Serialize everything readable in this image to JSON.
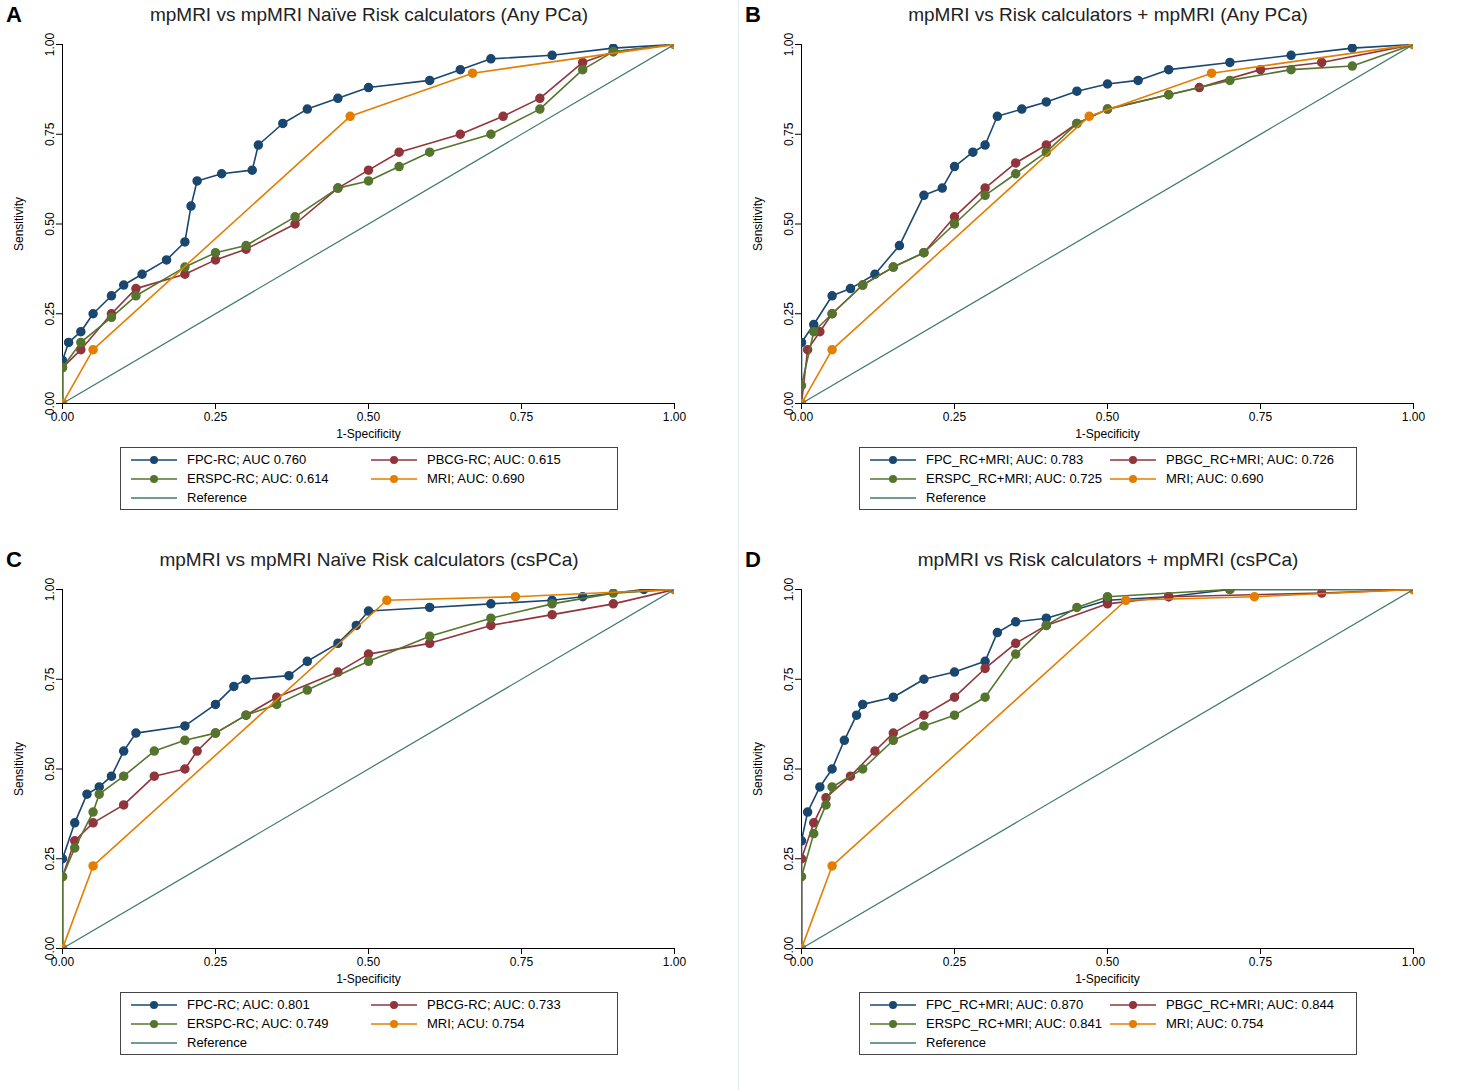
{
  "chart_data": [
    {
      "type": "line",
      "panel": "A",
      "title": "mpMRI vs mpMRI Naïve Risk calculators (Any PCa)",
      "x_label": "1-Specificity",
      "y_label": "Sensitivity",
      "xlim": [
        0,
        1
      ],
      "ylim": [
        0,
        1
      ],
      "xticks": [
        {
          "value": 0,
          "label": "0.00"
        },
        {
          "value": 0.25,
          "label": "0.25"
        },
        {
          "value": 0.5,
          "label": "0.50"
        },
        {
          "value": 0.75,
          "label": "0.75"
        },
        {
          "value": 1,
          "label": "1.00"
        }
      ],
      "yticks": [
        {
          "value": 0,
          "label": "0.00"
        },
        {
          "value": 0.25,
          "label": "0.25"
        },
        {
          "value": 0.5,
          "label": "0.50"
        },
        {
          "value": 0.75,
          "label": "0.75"
        },
        {
          "value": 1,
          "label": "1.00"
        }
      ],
      "series": [
        {
          "name": "FPC-RC; AUC 0.760",
          "color": "#1a476f",
          "marker": "circle",
          "x": [
            0,
            0,
            0.01,
            0.03,
            0.05,
            0.08,
            0.1,
            0.13,
            0.17,
            0.2,
            0.21,
            0.22,
            0.26,
            0.31,
            0.32,
            0.36,
            0.4,
            0.45,
            0.5,
            0.6,
            0.65,
            0.7,
            0.8,
            0.9,
            1
          ],
          "values": [
            0,
            0.12,
            0.17,
            0.2,
            0.25,
            0.3,
            0.33,
            0.36,
            0.4,
            0.45,
            0.55,
            0.62,
            0.64,
            0.65,
            0.72,
            0.78,
            0.82,
            0.85,
            0.88,
            0.9,
            0.93,
            0.96,
            0.97,
            0.99,
            1
          ]
        },
        {
          "name": "PBCG-RC; AUC: 0.615",
          "color": "#90353b",
          "marker": "circle",
          "x": [
            0,
            0,
            0.03,
            0.08,
            0.12,
            0.2,
            0.25,
            0.3,
            0.38,
            0.45,
            0.5,
            0.55,
            0.65,
            0.72,
            0.78,
            0.85,
            0.9,
            1
          ],
          "values": [
            0,
            0.1,
            0.15,
            0.25,
            0.32,
            0.36,
            0.4,
            0.43,
            0.5,
            0.6,
            0.65,
            0.7,
            0.75,
            0.8,
            0.85,
            0.95,
            0.98,
            1
          ]
        },
        {
          "name": "ERSPC-RC; AUC: 0.614",
          "color": "#55752f",
          "marker": "circle",
          "x": [
            0,
            0,
            0.03,
            0.08,
            0.12,
            0.2,
            0.25,
            0.3,
            0.38,
            0.45,
            0.5,
            0.55,
            0.6,
            0.7,
            0.78,
            0.85,
            0.9,
            1
          ],
          "values": [
            0,
            0.1,
            0.17,
            0.24,
            0.3,
            0.38,
            0.42,
            0.44,
            0.52,
            0.6,
            0.62,
            0.66,
            0.7,
            0.75,
            0.82,
            0.93,
            0.98,
            1
          ]
        },
        {
          "name": "MRI; AUC: 0.690",
          "color": "#e37e00",
          "marker": "circle",
          "x": [
            0,
            0.05,
            0.47,
            0.67,
            1
          ],
          "values": [
            0,
            0.15,
            0.8,
            0.92,
            1
          ]
        },
        {
          "name": "Reference",
          "color": "#3e7a6e",
          "marker": "none",
          "x": [
            0,
            1
          ],
          "values": [
            0,
            1
          ]
        }
      ]
    },
    {
      "type": "line",
      "panel": "B",
      "title": "mpMRI vs Risk calculators + mpMRI (Any PCa)",
      "x_label": "1-Specificity",
      "y_label": "Sensitivity",
      "xlim": [
        0,
        1
      ],
      "ylim": [
        0,
        1
      ],
      "xticks": [
        {
          "value": 0,
          "label": "0.00"
        },
        {
          "value": 0.25,
          "label": "0.25"
        },
        {
          "value": 0.5,
          "label": "0.50"
        },
        {
          "value": 0.75,
          "label": "0.75"
        },
        {
          "value": 1,
          "label": "1.00"
        }
      ],
      "yticks": [
        {
          "value": 0,
          "label": "0.00"
        },
        {
          "value": 0.25,
          "label": "0.25"
        },
        {
          "value": 0.5,
          "label": "0.50"
        },
        {
          "value": 0.75,
          "label": "0.75"
        },
        {
          "value": 1,
          "label": "1.00"
        }
      ],
      "series": [
        {
          "name": "FPC_RC+MRI; AUC: 0.783",
          "color": "#1a476f",
          "marker": "circle",
          "x": [
            0,
            0,
            0.02,
            0.05,
            0.08,
            0.12,
            0.16,
            0.2,
            0.23,
            0.25,
            0.28,
            0.3,
            0.32,
            0.36,
            0.4,
            0.45,
            0.5,
            0.55,
            0.6,
            0.7,
            0.8,
            0.9,
            1
          ],
          "values": [
            0,
            0.17,
            0.22,
            0.3,
            0.32,
            0.36,
            0.44,
            0.58,
            0.6,
            0.66,
            0.7,
            0.72,
            0.8,
            0.82,
            0.84,
            0.87,
            0.89,
            0.9,
            0.93,
            0.95,
            0.97,
            0.99,
            1
          ]
        },
        {
          "name": "PBGC_RC+MRI; AUC: 0.726",
          "color": "#90353b",
          "marker": "circle",
          "x": [
            0,
            0.01,
            0.03,
            0.05,
            0.1,
            0.15,
            0.2,
            0.25,
            0.3,
            0.35,
            0.4,
            0.45,
            0.5,
            0.6,
            0.65,
            0.75,
            0.85,
            1
          ],
          "values": [
            0,
            0.15,
            0.2,
            0.25,
            0.33,
            0.38,
            0.42,
            0.52,
            0.6,
            0.67,
            0.72,
            0.78,
            0.82,
            0.86,
            0.88,
            0.93,
            0.95,
            1
          ]
        },
        {
          "name": "ERSPC_RC+MRI; AUC: 0.725",
          "color": "#55752f",
          "marker": "circle",
          "x": [
            0,
            0,
            0.02,
            0.05,
            0.1,
            0.15,
            0.2,
            0.25,
            0.3,
            0.35,
            0.4,
            0.45,
            0.5,
            0.6,
            0.7,
            0.8,
            0.9,
            1
          ],
          "values": [
            0,
            0.05,
            0.2,
            0.25,
            0.33,
            0.38,
            0.42,
            0.5,
            0.58,
            0.64,
            0.7,
            0.78,
            0.82,
            0.86,
            0.9,
            0.93,
            0.94,
            1
          ]
        },
        {
          "name": "MRI; AUC: 0.690",
          "color": "#e37e00",
          "marker": "circle",
          "x": [
            0,
            0.05,
            0.47,
            0.67,
            1
          ],
          "values": [
            0,
            0.15,
            0.8,
            0.92,
            1
          ]
        },
        {
          "name": "Reference",
          "color": "#3e7a6e",
          "marker": "none",
          "x": [
            0,
            1
          ],
          "values": [
            0,
            1
          ]
        }
      ]
    },
    {
      "type": "line",
      "panel": "C",
      "title": "mpMRI vs mpMRI Naïve Risk calculators (csPCa)",
      "x_label": "1-Specificity",
      "y_label": "Sensitivity",
      "xlim": [
        0,
        1
      ],
      "ylim": [
        0,
        1
      ],
      "xticks": [
        {
          "value": 0,
          "label": "0.00"
        },
        {
          "value": 0.25,
          "label": "0.25"
        },
        {
          "value": 0.5,
          "label": "0.50"
        },
        {
          "value": 0.75,
          "label": "0.75"
        },
        {
          "value": 1,
          "label": "1.00"
        }
      ],
      "yticks": [
        {
          "value": 0,
          "label": "0.00"
        },
        {
          "value": 0.25,
          "label": "0.25"
        },
        {
          "value": 0.5,
          "label": "0.50"
        },
        {
          "value": 0.75,
          "label": "0.75"
        },
        {
          "value": 1,
          "label": "1.00"
        }
      ],
      "series": [
        {
          "name": "FPC-RC; AUC: 0.801",
          "color": "#1a476f",
          "marker": "circle",
          "x": [
            0,
            0,
            0.02,
            0.04,
            0.06,
            0.08,
            0.1,
            0.12,
            0.2,
            0.25,
            0.28,
            0.3,
            0.37,
            0.4,
            0.45,
            0.48,
            0.5,
            0.6,
            0.7,
            0.8,
            0.85,
            0.95,
            1
          ],
          "values": [
            0,
            0.25,
            0.35,
            0.43,
            0.45,
            0.48,
            0.55,
            0.6,
            0.62,
            0.68,
            0.73,
            0.75,
            0.76,
            0.8,
            0.85,
            0.9,
            0.94,
            0.95,
            0.96,
            0.97,
            0.98,
            1,
            1
          ]
        },
        {
          "name": "PBCG-RC; AUC: 0.733",
          "color": "#90353b",
          "marker": "circle",
          "x": [
            0,
            0,
            0.02,
            0.05,
            0.1,
            0.15,
            0.2,
            0.22,
            0.25,
            0.3,
            0.35,
            0.45,
            0.5,
            0.6,
            0.7,
            0.8,
            0.9,
            1
          ],
          "values": [
            0,
            0.2,
            0.3,
            0.35,
            0.4,
            0.48,
            0.5,
            0.55,
            0.6,
            0.65,
            0.7,
            0.77,
            0.82,
            0.85,
            0.9,
            0.93,
            0.96,
            1
          ]
        },
        {
          "name": "ERSPC-RC; AUC: 0.749",
          "color": "#55752f",
          "marker": "circle",
          "x": [
            0,
            0,
            0.02,
            0.05,
            0.06,
            0.1,
            0.15,
            0.2,
            0.25,
            0.3,
            0.35,
            0.4,
            0.5,
            0.6,
            0.7,
            0.8,
            0.9,
            1
          ],
          "values": [
            0,
            0.2,
            0.28,
            0.38,
            0.43,
            0.48,
            0.55,
            0.58,
            0.6,
            0.65,
            0.68,
            0.72,
            0.8,
            0.87,
            0.92,
            0.96,
            0.99,
            1
          ]
        },
        {
          "name": "MRI; ACU: 0.754",
          "color": "#e37e00",
          "marker": "circle",
          "x": [
            0,
            0.05,
            0.53,
            0.74,
            1
          ],
          "values": [
            0,
            0.23,
            0.97,
            0.98,
            1
          ]
        },
        {
          "name": "Reference",
          "color": "#3e7a6e",
          "marker": "none",
          "x": [
            0,
            1
          ],
          "values": [
            0,
            1
          ]
        }
      ]
    },
    {
      "type": "line",
      "panel": "D",
      "title": "mpMRI vs Risk calculators + mpMRI (csPCa)",
      "x_label": "1-Specificity",
      "y_label": "Sensitivity",
      "xlim": [
        0,
        1
      ],
      "ylim": [
        0,
        1
      ],
      "xticks": [
        {
          "value": 0,
          "label": "0.00"
        },
        {
          "value": 0.25,
          "label": "0.25"
        },
        {
          "value": 0.5,
          "label": "0.50"
        },
        {
          "value": 0.75,
          "label": "0.75"
        },
        {
          "value": 1,
          "label": "1.00"
        }
      ],
      "yticks": [
        {
          "value": 0,
          "label": "0.00"
        },
        {
          "value": 0.25,
          "label": "0.25"
        },
        {
          "value": 0.5,
          "label": "0.50"
        },
        {
          "value": 0.75,
          "label": "0.75"
        },
        {
          "value": 1,
          "label": "1.00"
        }
      ],
      "series": [
        {
          "name": "FPC_RC+MRI; AUC: 0.870",
          "color": "#1a476f",
          "marker": "circle",
          "x": [
            0,
            0,
            0.01,
            0.03,
            0.05,
            0.07,
            0.09,
            0.1,
            0.15,
            0.2,
            0.25,
            0.3,
            0.32,
            0.35,
            0.4,
            0.5,
            0.6,
            0.7,
            1
          ],
          "values": [
            0,
            0.3,
            0.38,
            0.45,
            0.5,
            0.58,
            0.65,
            0.68,
            0.7,
            0.75,
            0.77,
            0.8,
            0.88,
            0.91,
            0.92,
            0.97,
            0.98,
            1,
            1
          ]
        },
        {
          "name": "PBGC_RC+MRI; AUC: 0.844",
          "color": "#90353b",
          "marker": "circle",
          "x": [
            0,
            0,
            0.02,
            0.04,
            0.08,
            0.12,
            0.15,
            0.2,
            0.25,
            0.3,
            0.35,
            0.4,
            0.5,
            0.6,
            0.85,
            1
          ],
          "values": [
            0,
            0.25,
            0.35,
            0.42,
            0.48,
            0.55,
            0.6,
            0.65,
            0.7,
            0.78,
            0.85,
            0.9,
            0.96,
            0.98,
            0.99,
            1
          ]
        },
        {
          "name": "ERSPC_RC+MRI; AUC: 0.841",
          "color": "#55752f",
          "marker": "circle",
          "x": [
            0,
            0,
            0.02,
            0.04,
            0.05,
            0.1,
            0.15,
            0.2,
            0.25,
            0.3,
            0.35,
            0.4,
            0.45,
            0.5,
            0.7,
            1
          ],
          "values": [
            0,
            0.2,
            0.32,
            0.4,
            0.45,
            0.5,
            0.58,
            0.62,
            0.65,
            0.7,
            0.82,
            0.9,
            0.95,
            0.98,
            1,
            1
          ]
        },
        {
          "name": "MRI; AUC: 0.754",
          "color": "#e37e00",
          "marker": "circle",
          "x": [
            0,
            0.05,
            0.53,
            0.74,
            1
          ],
          "values": [
            0,
            0.23,
            0.97,
            0.98,
            1
          ]
        },
        {
          "name": "Reference",
          "color": "#3e7a6e",
          "marker": "none",
          "x": [
            0,
            1
          ],
          "values": [
            0,
            1
          ]
        }
      ]
    }
  ]
}
